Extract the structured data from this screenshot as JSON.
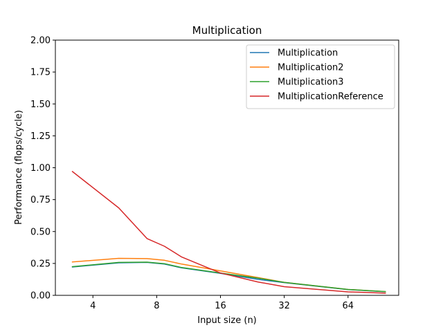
{
  "chart_data": {
    "type": "line",
    "title": "Multiplication",
    "xlabel": "Input size (n)",
    "ylabel": "Performance (flops/cycle)",
    "x_scale": "log2",
    "xlim": [
      2.66,
      111
    ],
    "ylim": [
      0,
      2.0
    ],
    "x_ticks": [
      4,
      8,
      16,
      32,
      64
    ],
    "x_tick_labels": [
      "4",
      "8",
      "16",
      "32",
      "64"
    ],
    "y_ticks": [
      0,
      0.25,
      0.5,
      0.75,
      1.0,
      1.25,
      1.5,
      1.75,
      2.0
    ],
    "y_tick_labels": [
      "0.00",
      "0.25",
      "0.50",
      "0.75",
      "1.00",
      "1.25",
      "1.50",
      "1.75",
      "2.00"
    ],
    "grid": false,
    "legend_position": "upper right",
    "x": [
      3.2,
      5.3,
      7.2,
      8.7,
      10.5,
      16,
      24,
      32,
      64,
      96
    ],
    "series": [
      {
        "name": "Multiplication",
        "color": "#1f77b4",
        "values": [
          0.222,
          0.255,
          0.258,
          0.245,
          0.215,
          0.172,
          0.125,
          0.1,
          0.045,
          0.028
        ]
      },
      {
        "name": "Multiplication2",
        "color": "#ff7f0e",
        "values": [
          0.262,
          0.29,
          0.288,
          0.275,
          0.245,
          0.192,
          0.14,
          0.102,
          0.046,
          0.029
        ]
      },
      {
        "name": "Multiplication3",
        "color": "#2ca02c",
        "values": [
          0.225,
          0.258,
          0.26,
          0.248,
          0.218,
          0.175,
          0.135,
          0.102,
          0.046,
          0.029
        ]
      },
      {
        "name": "MultiplicationReference",
        "color": "#d62728",
        "values": [
          0.97,
          0.685,
          0.445,
          0.385,
          0.3,
          0.175,
          0.105,
          0.068,
          0.027,
          0.017
        ]
      }
    ]
  }
}
